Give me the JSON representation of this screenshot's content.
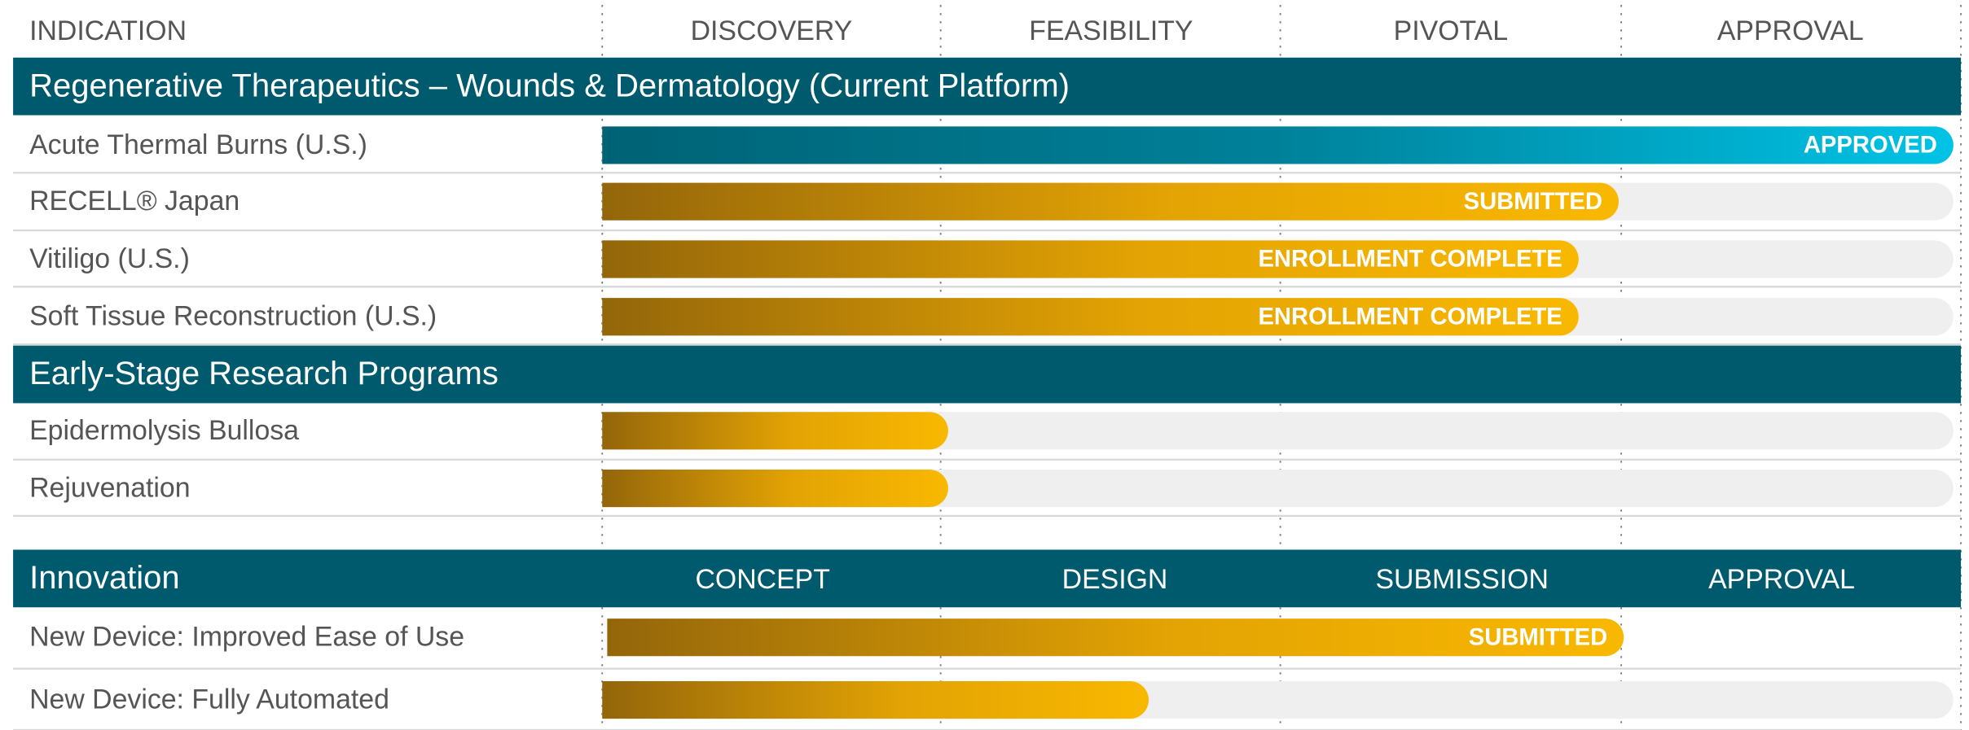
{
  "header": {
    "indication": "INDICATION",
    "columns": [
      "DISCOVERY",
      "FEASIBILITY",
      "PIVOTAL",
      "APPROVAL"
    ]
  },
  "sections": [
    {
      "title": "Regenerative Therapeutics – Wounds & Dermatology (Current Platform)",
      "rows": [
        {
          "label": "Acute Thermal Burns (U.S.)",
          "status": "APPROVED"
        },
        {
          "label": "RECELL® Japan",
          "status": "SUBMITTED"
        },
        {
          "label": "Vitiligo (U.S.)",
          "status": "ENROLLMENT COMPLETE"
        },
        {
          "label": "Soft Tissue Reconstruction (U.S.)",
          "status": "ENROLLMENT COMPLETE"
        }
      ]
    },
    {
      "title": "Early-Stage Research Programs",
      "rows": [
        {
          "label": "Epidermolysis Bullosa"
        },
        {
          "label": "Rejuvenation"
        }
      ]
    },
    {
      "title": "Innovation",
      "columns": [
        "CONCEPT",
        "DESIGN",
        "SUBMISSION",
        "APPROVAL"
      ],
      "rows": [
        {
          "label": "New Device: Improved Ease of Use",
          "status": "SUBMITTED"
        },
        {
          "label": "New Device: Fully Automated"
        }
      ]
    }
  ]
}
